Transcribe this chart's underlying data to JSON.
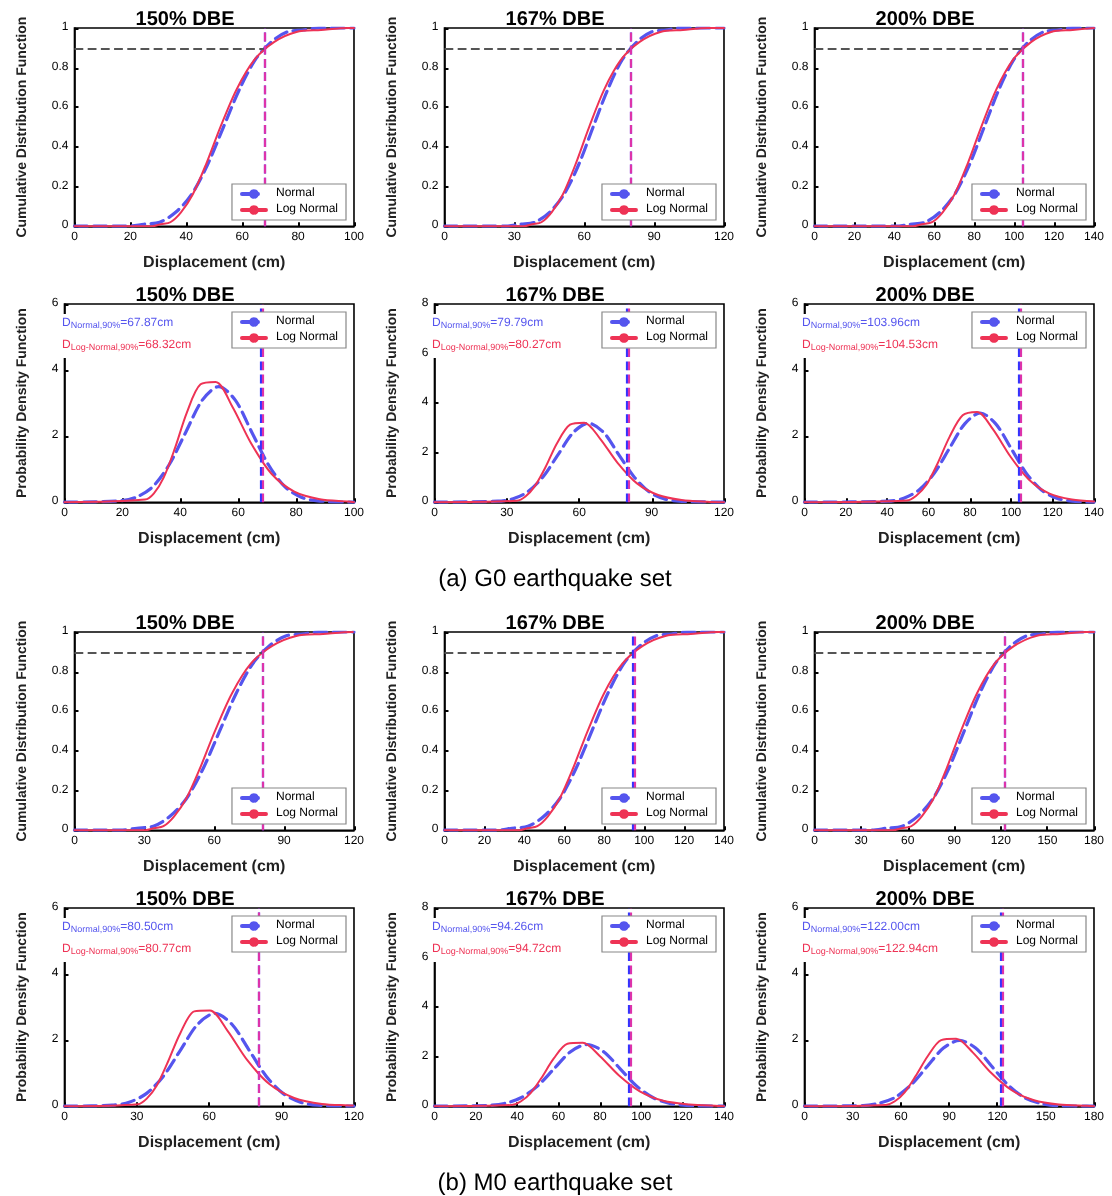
{
  "chart_data": [
    {
      "type": "line",
      "title": "150% DBE",
      "xlabel": "Displacement (cm)",
      "ylabel": "Cumulative Distribution Function",
      "xlim": [
        0,
        100
      ],
      "xticks": [
        0,
        20,
        40,
        60,
        80,
        100
      ],
      "ylim": [
        0,
        1
      ],
      "yticks": [
        0,
        0.2,
        0.4,
        0.6,
        0.8,
        1
      ],
      "legend": "bottom right",
      "series": [
        {
          "name": "Normal",
          "color": "#5555ee",
          "line_style": "dashed",
          "x": [
            0,
            19.1,
            24.8,
            30.5,
            36.2,
            41.9,
            47.6,
            53.3,
            59.0,
            64.7,
            70.4,
            76.1,
            81.8,
            87.5,
            100
          ],
          "values": [
            0,
            0,
            0.01,
            0.02,
            0.07,
            0.16,
            0.31,
            0.5,
            0.69,
            0.84,
            0.93,
            0.98,
            0.99,
            1,
            1
          ]
        },
        {
          "name": "Log Normal",
          "color": "#ee3355",
          "line_style": "solid",
          "x": [
            0,
            27.8,
            30.9,
            34.3,
            38.1,
            42.3,
            47.0,
            52.2,
            58.0,
            64.4,
            71.5,
            79.4,
            88.2,
            98.0,
            100
          ],
          "values": [
            0,
            0,
            0.01,
            0.02,
            0.07,
            0.16,
            0.31,
            0.5,
            0.69,
            0.84,
            0.93,
            0.98,
            0.99,
            1,
            1
          ]
        }
      ],
      "ref_lines": [
        {
          "axis": "y",
          "value": 0.9,
          "color": "#555555",
          "line_style": "dashed"
        },
        {
          "axis": "x",
          "value": 67.87,
          "color": "#3333ff",
          "line_style": "dashed"
        },
        {
          "axis": "x",
          "value": 68.32,
          "color": "#dd33aa",
          "line_style": "dashed"
        }
      ]
    },
    {
      "type": "line",
      "title": "167% DBE",
      "xlabel": "Displacement (cm)",
      "ylabel": "Cumulative Distribution Function",
      "xlim": [
        0,
        120
      ],
      "xticks": [
        0,
        30,
        60,
        90,
        120
      ],
      "ylim": [
        0,
        1
      ],
      "yticks": [
        0,
        0.2,
        0.4,
        0.6,
        0.8,
        1
      ],
      "legend": "bottom right",
      "series": [
        {
          "name": "Normal",
          "color": "#5555ee",
          "line_style": "dashed",
          "x": [
            0,
            26.3,
            32.6,
            38.8,
            45.1,
            51.3,
            57.6,
            63.8,
            70.1,
            76.3,
            82.6,
            88.8,
            95.1,
            101.3,
            120
          ],
          "values": [
            0,
            0,
            0.01,
            0.02,
            0.07,
            0.16,
            0.31,
            0.5,
            0.69,
            0.84,
            0.93,
            0.98,
            0.99,
            1,
            1
          ]
        },
        {
          "name": "Log Normal",
          "color": "#ee3355",
          "line_style": "solid",
          "x": [
            0,
            34.1,
            37.7,
            41.6,
            46.0,
            50.8,
            56.2,
            62.1,
            68.6,
            75.8,
            83.8,
            92.7,
            102.4,
            113.1,
            120
          ],
          "values": [
            0,
            0,
            0.01,
            0.02,
            0.07,
            0.16,
            0.31,
            0.5,
            0.69,
            0.84,
            0.93,
            0.98,
            0.99,
            1,
            1
          ]
        }
      ],
      "ref_lines": [
        {
          "axis": "y",
          "value": 0.9,
          "color": "#555555",
          "line_style": "dashed"
        },
        {
          "axis": "x",
          "value": 79.79,
          "color": "#3333ff",
          "line_style": "dashed"
        },
        {
          "axis": "x",
          "value": 80.27,
          "color": "#dd33aa",
          "line_style": "dashed"
        }
      ]
    },
    {
      "type": "line",
      "title": "200% DBE",
      "xlabel": "Displacement (cm)",
      "ylabel": "Cumulative Distribution Function",
      "xlim": [
        0,
        140
      ],
      "xticks": [
        0,
        20,
        40,
        60,
        80,
        100,
        120,
        140
      ],
      "ylim": [
        0,
        1
      ],
      "yticks": [
        0,
        0.2,
        0.4,
        0.6,
        0.8,
        1
      ],
      "legend": "bottom right",
      "series": [
        {
          "name": "Normal",
          "color": "#5555ee",
          "line_style": "dashed",
          "x": [
            0,
            40.6,
            48.0,
            55.4,
            62.8,
            70.2,
            77.6,
            85.0,
            92.4,
            99.8,
            107.2,
            114.6,
            122.0,
            129.4,
            140
          ],
          "values": [
            0,
            0,
            0.01,
            0.02,
            0.07,
            0.16,
            0.31,
            0.5,
            0.69,
            0.84,
            0.93,
            0.98,
            0.99,
            1,
            1
          ]
        },
        {
          "name": "Log Normal",
          "color": "#ee3355",
          "line_style": "solid",
          "x": [
            0,
            49.4,
            53.9,
            58.9,
            64.2,
            70.1,
            76.5,
            83.5,
            91.1,
            99.5,
            108.6,
            118.5,
            129.3,
            140
          ],
          "values": [
            0,
            0,
            0.01,
            0.02,
            0.07,
            0.16,
            0.31,
            0.5,
            0.69,
            0.84,
            0.93,
            0.98,
            0.99,
            1
          ]
        }
      ],
      "ref_lines": [
        {
          "axis": "y",
          "value": 0.9,
          "color": "#555555",
          "line_style": "dashed"
        },
        {
          "axis": "x",
          "value": 103.96,
          "color": "#3333ff",
          "line_style": "dashed"
        },
        {
          "axis": "x",
          "value": 104.53,
          "color": "#dd33aa",
          "line_style": "dashed"
        }
      ]
    },
    {
      "type": "line",
      "title": "150% DBE",
      "xlabel": "Displacement (cm)",
      "ylabel": "Probability Density Function",
      "xlim": [
        0,
        100
      ],
      "xticks": [
        0,
        20,
        40,
        60,
        80,
        100
      ],
      "ylim": [
        0,
        6
      ],
      "yticks": [
        0,
        2,
        4,
        6
      ],
      "legend": "top right",
      "series": [
        {
          "name": "Normal",
          "color": "#5555ee",
          "line_style": "dashed",
          "x": [
            0,
            19.1,
            24.8,
            30.5,
            36.2,
            41.9,
            47.6,
            53.3,
            59.0,
            64.7,
            70.4,
            76.1,
            81.8,
            87.5,
            100
          ],
          "values": [
            0,
            0.04,
            0.15,
            0.47,
            1.14,
            2.12,
            3.09,
            3.5,
            3.09,
            2.12,
            1.14,
            0.47,
            0.15,
            0.04,
            0
          ]
        },
        {
          "name": "Log Normal",
          "color": "#ee3355",
          "line_style": "solid",
          "x": [
            0,
            27.8,
            30.9,
            34.3,
            38.1,
            42.3,
            47.0,
            52.2,
            58.0,
            64.4,
            71.5,
            79.4,
            88.2,
            98.0,
            100
          ],
          "values": [
            0,
            0.08,
            0.27,
            0.75,
            1.62,
            2.72,
            3.57,
            3.64,
            2.89,
            1.79,
            0.86,
            0.32,
            0.09,
            0.02,
            0
          ]
        }
      ],
      "ref_lines": [
        {
          "axis": "x",
          "value": 67.87,
          "color": "#3333ff",
          "line_style": "dashed"
        },
        {
          "axis": "x",
          "value": 68.32,
          "color": "#dd33aa",
          "line_style": "dashed"
        }
      ],
      "annotations": [
        "D$_{Normal,90%}$=67.87cm",
        "D$_{Log-Normal,90%}$=68.32cm"
      ]
    },
    {
      "type": "line",
      "title": "167% DBE",
      "xlabel": "Displacement (cm)",
      "ylabel": "Probability Density Function",
      "xlim": [
        0,
        120
      ],
      "xticks": [
        0,
        30,
        60,
        90,
        120
      ],
      "ylim": [
        0,
        8
      ],
      "yticks": [
        0,
        2,
        4,
        6,
        8
      ],
      "legend": "top right",
      "series": [
        {
          "name": "Normal",
          "color": "#5555ee",
          "line_style": "dashed",
          "x": [
            0,
            26.3,
            32.6,
            38.8,
            45.1,
            51.3,
            57.6,
            63.8,
            70.1,
            76.3,
            82.6,
            88.8,
            95.1,
            101.3,
            120
          ],
          "values": [
            0,
            0.04,
            0.14,
            0.43,
            1.04,
            1.93,
            2.82,
            3.19,
            2.82,
            1.93,
            1.04,
            0.43,
            0.14,
            0.04,
            0
          ]
        },
        {
          "name": "Log Normal",
          "color": "#ee3355",
          "line_style": "solid",
          "x": [
            0,
            34.1,
            37.7,
            41.6,
            46.0,
            50.8,
            56.2,
            62.1,
            68.6,
            75.8,
            83.8,
            92.7,
            102.4,
            113.1,
            120
          ],
          "values": [
            0,
            0.06,
            0.23,
            0.65,
            1.41,
            2.38,
            3.13,
            3.21,
            2.57,
            1.6,
            0.77,
            0.29,
            0.09,
            0.02,
            0
          ]
        }
      ],
      "ref_lines": [
        {
          "axis": "x",
          "value": 79.79,
          "color": "#3333ff",
          "line_style": "dashed"
        },
        {
          "axis": "x",
          "value": 80.27,
          "color": "#dd33aa",
          "line_style": "dashed"
        }
      ],
      "annotations": [
        "D$_{Normal,90%}$=79.79cm",
        "D$_{Log-Normal,90%}$=80.27cm",
        "(a) G0 earthquake set"
      ]
    },
    {
      "type": "line",
      "title": "200% DBE",
      "xlabel": "Displacement (cm)",
      "ylabel": "Probability Density Function",
      "xlim": [
        0,
        140
      ],
      "xticks": [
        0,
        20,
        40,
        60,
        80,
        100,
        120,
        140
      ],
      "ylim": [
        0,
        6
      ],
      "yticks": [
        0,
        2,
        4,
        6
      ],
      "legend": "top right",
      "series": [
        {
          "name": "Normal",
          "color": "#5555ee",
          "line_style": "dashed",
          "x": [
            0,
            40.6,
            48.0,
            55.4,
            62.8,
            70.2,
            77.6,
            85.0,
            92.4,
            99.8,
            107.2,
            114.6,
            122.0,
            129.4,
            140
          ],
          "values": [
            0,
            0.03,
            0.12,
            0.37,
            0.88,
            1.64,
            2.38,
            2.7,
            2.38,
            1.64,
            0.88,
            0.37,
            0.12,
            0.03,
            0
          ]
        },
        {
          "name": "Log Normal",
          "color": "#ee3355",
          "line_style": "solid",
          "x": [
            0,
            49.4,
            53.9,
            58.9,
            64.2,
            70.1,
            76.5,
            83.5,
            91.1,
            99.5,
            108.6,
            118.5,
            129.3,
            140
          ],
          "values": [
            0,
            0.05,
            0.19,
            0.52,
            1.15,
            1.97,
            2.63,
            2.73,
            2.21,
            1.39,
            0.68,
            0.26,
            0.08,
            0.02
          ]
        }
      ],
      "ref_lines": [
        {
          "axis": "x",
          "value": 103.96,
          "color": "#3333ff",
          "line_style": "dashed"
        },
        {
          "axis": "x",
          "value": 104.53,
          "color": "#dd33aa",
          "line_style": "dashed"
        }
      ],
      "annotations": [
        "D$_{Normal,90%}$=103.96cm",
        "D$_{Log-Normal,90%}$=104.53cm"
      ]
    },
    {
      "type": "line",
      "title": "150% DBE",
      "xlabel": "Displacement (cm)",
      "ylabel": "Cumulative Distribution Function",
      "xlim": [
        0,
        120
      ],
      "xticks": [
        0,
        30,
        60,
        90,
        120
      ],
      "ylim": [
        0,
        1
      ],
      "yticks": [
        0,
        0.2,
        0.4,
        0.6,
        0.8,
        1
      ],
      "legend": "bottom right",
      "series": [
        {
          "name": "Normal",
          "color": "#5555ee",
          "line_style": "dashed",
          "x": [
            0,
            19.7,
            26.8,
            33.9,
            41.0,
            48.1,
            55.2,
            62.3,
            69.4,
            76.5,
            83.6,
            90.7,
            97.8,
            104.9,
            120
          ],
          "values": [
            0,
            0,
            0.01,
            0.02,
            0.07,
            0.16,
            0.31,
            0.5,
            0.69,
            0.84,
            0.93,
            0.98,
            0.99,
            1,
            1
          ]
        },
        {
          "name": "Log Normal",
          "color": "#ee3355",
          "line_style": "solid",
          "x": [
            0,
            30.4,
            34.1,
            38.2,
            42.8,
            48.0,
            53.8,
            60.3,
            67.6,
            75.7,
            84.9,
            95.2,
            106.7,
            119.5,
            120
          ],
          "values": [
            0,
            0,
            0.01,
            0.02,
            0.07,
            0.16,
            0.31,
            0.5,
            0.69,
            0.84,
            0.93,
            0.98,
            0.99,
            1,
            1
          ]
        }
      ],
      "ref_lines": [
        {
          "axis": "y",
          "value": 0.9,
          "color": "#555555",
          "line_style": "dashed"
        },
        {
          "axis": "x",
          "value": 80.5,
          "color": "#3333ff",
          "line_style": "dashed"
        },
        {
          "axis": "x",
          "value": 80.77,
          "color": "#dd33aa",
          "line_style": "dashed"
        }
      ]
    },
    {
      "type": "line",
      "title": "167% DBE",
      "xlabel": "Displacement (cm)",
      "ylabel": "Cumulative Distribution Function",
      "xlim": [
        0,
        140
      ],
      "xticks": [
        0,
        20,
        40,
        60,
        80,
        100,
        120,
        140
      ],
      "ylim": [
        0,
        1
      ],
      "yticks": [
        0,
        0.2,
        0.4,
        0.6,
        0.8,
        1
      ],
      "legend": "bottom right",
      "series": [
        {
          "name": "Normal",
          "color": "#5555ee",
          "line_style": "dashed",
          "x": [
            0,
            25.8,
            33.8,
            41.8,
            49.8,
            57.8,
            65.8,
            73.8,
            81.8,
            89.8,
            97.8,
            105.8,
            113.8,
            121.8,
            140
          ],
          "values": [
            0,
            0,
            0.01,
            0.02,
            0.07,
            0.16,
            0.31,
            0.5,
            0.69,
            0.84,
            0.93,
            0.98,
            0.99,
            1,
            1
          ]
        },
        {
          "name": "Log Normal",
          "color": "#ee3355",
          "line_style": "solid",
          "x": [
            0,
            37.4,
            41.7,
            46.5,
            51.8,
            57.7,
            64.3,
            71.7,
            79.9,
            89.1,
            99.3,
            110.6,
            123.3,
            137.4,
            140
          ],
          "values": [
            0,
            0,
            0.01,
            0.02,
            0.07,
            0.16,
            0.31,
            0.5,
            0.69,
            0.84,
            0.93,
            0.98,
            0.99,
            1,
            1
          ]
        }
      ],
      "ref_lines": [
        {
          "axis": "y",
          "value": 0.9,
          "color": "#555555",
          "line_style": "dashed"
        },
        {
          "axis": "x",
          "value": 94.26,
          "color": "#3333ff",
          "line_style": "dashed"
        },
        {
          "axis": "x",
          "value": 94.72,
          "color": "#dd33aa",
          "line_style": "dashed"
        }
      ]
    },
    {
      "type": "line",
      "title": "200% DBE",
      "xlabel": "Displacement (cm)",
      "ylabel": "Cumulative Distribution Function",
      "xlim": [
        0,
        180
      ],
      "xticks": [
        0,
        30,
        60,
        90,
        120,
        150,
        180
      ],
      "ylim": [
        0,
        1
      ],
      "yticks": [
        0,
        0.2,
        0.4,
        0.6,
        0.8,
        1
      ],
      "legend": "bottom right",
      "series": [
        {
          "name": "Normal",
          "color": "#5555ee",
          "line_style": "dashed",
          "x": [
            0,
            36.4,
            46.4,
            56.4,
            66.4,
            76.4,
            86.4,
            96.4,
            106.4,
            116.4,
            126.4,
            136.4,
            146.4,
            156.4,
            180
          ],
          "values": [
            0,
            0,
            0.01,
            0.02,
            0.07,
            0.16,
            0.31,
            0.5,
            0.69,
            0.84,
            0.93,
            0.98,
            0.99,
            1,
            1
          ]
        },
        {
          "name": "Log Normal",
          "color": "#ee3355",
          "line_style": "solid",
          "x": [
            0,
            50.6,
            56.2,
            62.3,
            69.1,
            76.7,
            85.0,
            94.3,
            104.6,
            116.0,
            128.6,
            142.7,
            158.2,
            175.5,
            180
          ],
          "values": [
            0,
            0,
            0.01,
            0.02,
            0.07,
            0.16,
            0.31,
            0.5,
            0.69,
            0.84,
            0.93,
            0.98,
            0.99,
            1,
            1
          ]
        }
      ],
      "ref_lines": [
        {
          "axis": "y",
          "value": 0.9,
          "color": "#555555",
          "line_style": "dashed"
        },
        {
          "axis": "x",
          "value": 122.0,
          "color": "#3333ff",
          "line_style": "dashed"
        },
        {
          "axis": "x",
          "value": 122.94,
          "color": "#dd33aa",
          "line_style": "dashed"
        }
      ]
    },
    {
      "type": "line",
      "title": "150% DBE",
      "xlabel": "Displacement (cm)",
      "ylabel": "Probability Density Function",
      "xlim": [
        0,
        120
      ],
      "xticks": [
        0,
        30,
        60,
        90,
        120
      ],
      "ylim": [
        0,
        6
      ],
      "yticks": [
        0,
        2,
        4,
        6
      ],
      "legend": "top right",
      "series": [
        {
          "name": "Normal",
          "color": "#5555ee",
          "line_style": "dashed",
          "x": [
            0,
            19.7,
            26.8,
            33.9,
            41.0,
            48.1,
            55.2,
            62.3,
            69.4,
            76.5,
            83.6,
            90.7,
            97.8,
            104.9,
            120
          ],
          "values": [
            0,
            0.03,
            0.12,
            0.38,
            0.91,
            1.7,
            2.48,
            2.81,
            2.48,
            1.7,
            0.91,
            0.38,
            0.12,
            0.03,
            0
          ]
        },
        {
          "name": "Log Normal",
          "color": "#ee3355",
          "line_style": "solid",
          "x": [
            0,
            30.4,
            34.1,
            38.2,
            42.8,
            48.0,
            53.8,
            60.3,
            67.6,
            75.7,
            84.9,
            95.2,
            106.7,
            119.5,
            120
          ],
          "values": [
            0,
            0.06,
            0.23,
            0.62,
            1.33,
            2.21,
            2.87,
            2.9,
            2.28,
            1.4,
            0.67,
            0.25,
            0.07,
            0.02,
            0
          ]
        }
      ],
      "ref_lines": [
        {
          "axis": "x",
          "value": 80.5,
          "color": "#3333ff",
          "line_style": "dashed"
        },
        {
          "axis": "x",
          "value": 80.77,
          "color": "#dd33aa",
          "line_style": "dashed"
        }
      ],
      "annotations": [
        "D$_{Normal,90%}$=80.50cm",
        "D$_{Log-Normal,90%}$=80.77cm"
      ]
    },
    {
      "type": "line",
      "title": "167% DBE",
      "xlabel": "Displacement (cm)",
      "ylabel": "Probability Density Function",
      "xlim": [
        0,
        140
      ],
      "xticks": [
        0,
        20,
        40,
        60,
        80,
        100,
        120,
        140
      ],
      "ylim": [
        0,
        8
      ],
      "yticks": [
        0,
        2,
        4,
        6,
        8
      ],
      "legend": "top right",
      "series": [
        {
          "name": "Normal",
          "color": "#5555ee",
          "line_style": "dashed",
          "x": [
            0,
            25.8,
            33.8,
            41.8,
            49.8,
            57.8,
            65.8,
            73.8,
            81.8,
            89.8,
            97.8,
            105.8,
            113.8,
            121.8,
            140
          ],
          "values": [
            0,
            0.03,
            0.11,
            0.34,
            0.81,
            1.51,
            2.2,
            2.49,
            2.2,
            1.51,
            0.81,
            0.34,
            0.11,
            0.03,
            0
          ]
        },
        {
          "name": "Log Normal",
          "color": "#ee3355",
          "line_style": "solid",
          "x": [
            0,
            37.4,
            41.7,
            46.5,
            51.8,
            57.7,
            64.3,
            71.7,
            79.9,
            89.1,
            99.3,
            110.6,
            123.3,
            137.4,
            140
          ],
          "values": [
            0,
            0.05,
            0.19,
            0.53,
            1.15,
            1.93,
            2.52,
            2.56,
            2.03,
            1.25,
            0.6,
            0.22,
            0.07,
            0.01,
            0
          ]
        }
      ],
      "ref_lines": [
        {
          "axis": "x",
          "value": 94.26,
          "color": "#3333ff",
          "line_style": "dashed"
        },
        {
          "axis": "x",
          "value": 94.72,
          "color": "#dd33aa",
          "line_style": "dashed"
        }
      ],
      "annotations": [
        "D$_{Normal,90%}$=94.26cm",
        "D$_{Log-Normal,90%}$=94.72cm",
        "(b) M0 earthquake set"
      ]
    },
    {
      "type": "line",
      "title": "200% DBE",
      "xlabel": "Displacement (cm)",
      "ylabel": "Probability Density Function",
      "xlim": [
        0,
        180
      ],
      "xticks": [
        0,
        30,
        60,
        90,
        120,
        150,
        180
      ],
      "ylim": [
        0,
        6
      ],
      "yticks": [
        0,
        2,
        4,
        6
      ],
      "legend": "top right",
      "series": [
        {
          "name": "Normal",
          "color": "#5555ee",
          "line_style": "dashed",
          "x": [
            0,
            36.4,
            46.4,
            56.4,
            66.4,
            76.4,
            86.4,
            96.4,
            106.4,
            116.4,
            126.4,
            136.4,
            146.4,
            156.4,
            180
          ],
          "values": [
            0,
            0.02,
            0.09,
            0.27,
            0.65,
            1.21,
            1.76,
            1.99,
            1.76,
            1.21,
            0.65,
            0.27,
            0.09,
            0.02,
            0
          ]
        },
        {
          "name": "Log Normal",
          "color": "#ee3355",
          "line_style": "solid",
          "x": [
            0,
            50.6,
            56.2,
            62.3,
            69.1,
            76.7,
            85.0,
            94.3,
            104.6,
            116.0,
            128.6,
            142.7,
            158.2,
            175.5,
            180
          ],
          "values": [
            0,
            0.04,
            0.15,
            0.42,
            0.91,
            1.52,
            2.0,
            2.04,
            1.63,
            1.01,
            0.49,
            0.18,
            0.05,
            0.01,
            0
          ]
        }
      ],
      "ref_lines": [
        {
          "axis": "x",
          "value": 122.0,
          "color": "#3333ff",
          "line_style": "dashed"
        },
        {
          "axis": "x",
          "value": 122.94,
          "color": "#dd33aa",
          "line_style": "dashed"
        }
      ],
      "annotations": [
        "D$_{Normal,90%}$=122.00cm",
        "D$_{Log-Normal,90%}$=122.94cm"
      ]
    }
  ]
}
